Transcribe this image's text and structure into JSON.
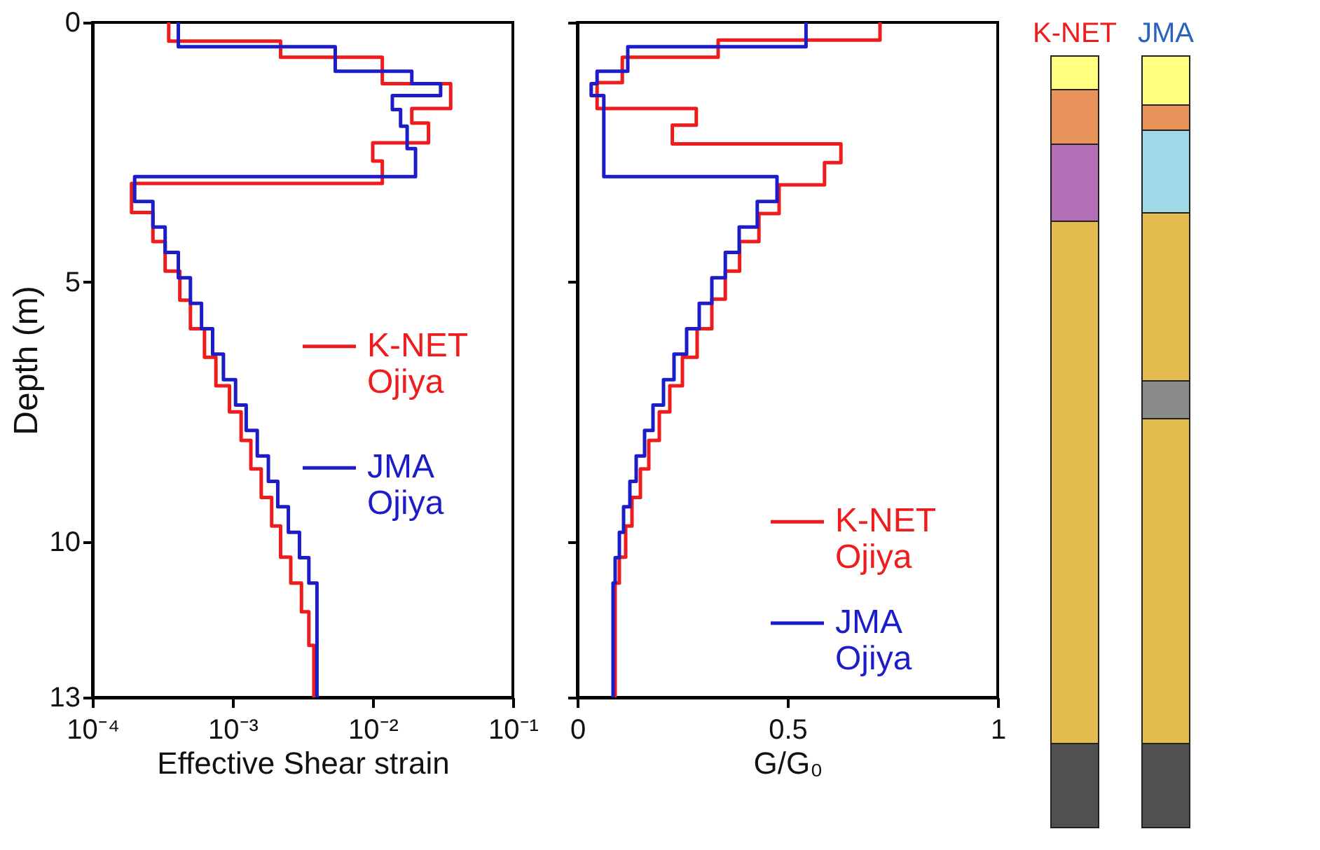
{
  "chart_data": [
    {
      "type": "line",
      "xlabel": "Effective Shear strain",
      "ylabel": "Depth (m)",
      "log": "x",
      "xlim": [
        0.0001,
        0.1
      ],
      "xticks": [
        {
          "value": 0.0001,
          "label": "10⁻⁴"
        },
        {
          "value": 0.001,
          "label": "10⁻³"
        },
        {
          "value": 0.01,
          "label": "10⁻²"
        },
        {
          "value": 0.1,
          "label": "10⁻¹"
        }
      ],
      "ylim": [
        13,
        0
      ],
      "yticks": [
        0,
        5,
        10,
        13
      ],
      "grid": false,
      "legend": "right",
      "line_style": "solid",
      "marker": "none",
      "series": [
        {
          "name": "K-NET\nOjiya",
          "color": "#ee1c1c",
          "x": [
            0.00035,
            0.00035,
            0.0022,
            0.0022,
            0.0117,
            0.0117,
            0.036,
            0.036,
            0.019,
            0.019,
            0.025,
            0.025,
            0.01,
            0.01,
            0.0117,
            0.0117,
            0.00019,
            0.00019,
            0.00027,
            0.00027,
            0.00033,
            0.00033,
            0.00042,
            0.00042,
            0.0005,
            0.0005,
            0.00063,
            0.00063,
            0.00076,
            0.00076,
            0.00095,
            0.00095,
            0.00115,
            0.00115,
            0.00135,
            0.00135,
            0.0016,
            0.0016,
            0.0019,
            0.0019,
            0.0022,
            0.0022,
            0.0026,
            0.0026,
            0.0031,
            0.0031,
            0.0035,
            0.0035,
            0.0038,
            0.0038
          ],
          "values": [
            0,
            0.36,
            0.36,
            0.67,
            0.67,
            1.18,
            1.18,
            1.66,
            1.66,
            1.94,
            1.94,
            2.32,
            2.32,
            2.67,
            2.67,
            3.1,
            3.1,
            3.66,
            3.66,
            4.22,
            4.22,
            4.79,
            4.79,
            5.35,
            5.35,
            5.9,
            5.9,
            6.45,
            6.45,
            7.0,
            7.0,
            7.5,
            7.5,
            8.05,
            8.05,
            8.6,
            8.6,
            9.15,
            9.15,
            9.7,
            9.7,
            10.3,
            10.3,
            10.8,
            10.8,
            11.35,
            11.35,
            12,
            12,
            13
          ]
        },
        {
          "name": "JMA\nOjiya",
          "color": "#1c1cc8",
          "x": [
            0.00041,
            0.00041,
            0.0054,
            0.0054,
            0.019,
            0.019,
            0.0305,
            0.0305,
            0.0138,
            0.0138,
            0.0158,
            0.0158,
            0.0176,
            0.0176,
            0.0202,
            0.0202,
            0.0002,
            0.0002,
            0.00027,
            0.00027,
            0.00033,
            0.00033,
            0.00041,
            0.00041,
            0.0005,
            0.0005,
            0.0006,
            0.0006,
            0.00072,
            0.00072,
            0.00086,
            0.00086,
            0.00105,
            0.00105,
            0.00125,
            0.00125,
            0.0015,
            0.0015,
            0.0018,
            0.0018,
            0.0021,
            0.0021,
            0.0025,
            0.0025,
            0.003,
            0.003,
            0.0035,
            0.0035,
            0.004,
            0.004
          ],
          "values": [
            0,
            0.47,
            0.47,
            0.94,
            0.94,
            1.18,
            1.18,
            1.41,
            1.41,
            1.68,
            1.68,
            2.0,
            2.0,
            2.43,
            2.43,
            2.97,
            2.97,
            3.45,
            3.45,
            3.94,
            3.94,
            4.43,
            4.43,
            4.92,
            4.92,
            5.41,
            5.41,
            5.9,
            5.9,
            6.39,
            6.39,
            6.88,
            6.88,
            7.37,
            7.37,
            7.86,
            7.86,
            8.35,
            8.35,
            8.84,
            8.84,
            9.33,
            9.33,
            9.82,
            9.82,
            10.31,
            10.31,
            10.8,
            10.8,
            13
          ]
        }
      ]
    },
    {
      "type": "line",
      "xlabel": "G/G₀",
      "xlim": [
        0,
        1
      ],
      "xticks": [
        0,
        0.5,
        1
      ],
      "ylim": [
        13,
        0
      ],
      "yticks": [
        0,
        5,
        10,
        13
      ],
      "tick_labels": "x",
      "grid": false,
      "legend": "bottom right",
      "line_style": "solid",
      "marker": "none",
      "series": [
        {
          "name": "K-NET\nOjiya",
          "color": "#ee1c1c",
          "x": [
            0.72,
            0.72,
            0.335,
            0.335,
            0.107,
            0.107,
            0.047,
            0.047,
            0.283,
            0.283,
            0.226,
            0.226,
            0.627,
            0.627,
            0.588,
            0.588,
            0.48,
            0.48,
            0.432,
            0.432,
            0.386,
            0.386,
            0.352,
            0.352,
            0.32,
            0.32,
            0.285,
            0.285,
            0.25,
            0.25,
            0.22,
            0.22,
            0.195,
            0.195,
            0.17,
            0.17,
            0.15,
            0.15,
            0.13,
            0.13,
            0.115,
            0.115,
            0.1,
            0.1,
            0.09,
            0.09
          ],
          "values": [
            0,
            0.34,
            0.34,
            0.67,
            0.67,
            1.16,
            1.16,
            1.66,
            1.66,
            1.98,
            1.98,
            2.34,
            2.34,
            2.7,
            2.7,
            3.13,
            3.13,
            3.68,
            3.68,
            4.22,
            4.22,
            4.79,
            4.79,
            5.33,
            5.33,
            5.9,
            5.9,
            6.45,
            6.45,
            7.0,
            7.0,
            7.5,
            7.5,
            8.05,
            8.05,
            8.6,
            8.6,
            9.15,
            9.15,
            9.7,
            9.7,
            10.3,
            10.3,
            10.8,
            10.8,
            13
          ]
        },
        {
          "name": "JMA\nOjiya",
          "color": "#1c1cc8",
          "x": [
            0.544,
            0.544,
            0.12,
            0.12,
            0.047,
            0.047,
            0.033,
            0.033,
            0.063,
            0.063,
            0.475,
            0.475,
            0.428,
            0.428,
            0.385,
            0.385,
            0.352,
            0.352,
            0.32,
            0.32,
            0.29,
            0.29,
            0.26,
            0.26,
            0.23,
            0.23,
            0.205,
            0.205,
            0.18,
            0.18,
            0.16,
            0.16,
            0.14,
            0.14,
            0.125,
            0.125,
            0.11,
            0.11,
            0.1,
            0.1,
            0.09,
            0.09,
            0.085,
            0.085
          ],
          "values": [
            0,
            0.47,
            0.47,
            0.94,
            0.94,
            1.18,
            1.18,
            1.41,
            1.41,
            2.97,
            2.97,
            3.45,
            3.45,
            3.94,
            3.94,
            4.43,
            4.43,
            4.92,
            4.92,
            5.41,
            5.41,
            5.9,
            5.9,
            6.39,
            6.39,
            6.88,
            6.88,
            7.37,
            7.37,
            7.86,
            7.86,
            8.35,
            8.35,
            8.84,
            8.84,
            9.33,
            9.33,
            9.82,
            9.82,
            10.31,
            10.31,
            10.8,
            10.8,
            13
          ]
        }
      ]
    },
    {
      "type": "other",
      "categories": [
        "K-NET",
        "JMA"
      ],
      "colors": [
        "#ee1c1c",
        "#2a62c0"
      ]
    }
  ]
}
